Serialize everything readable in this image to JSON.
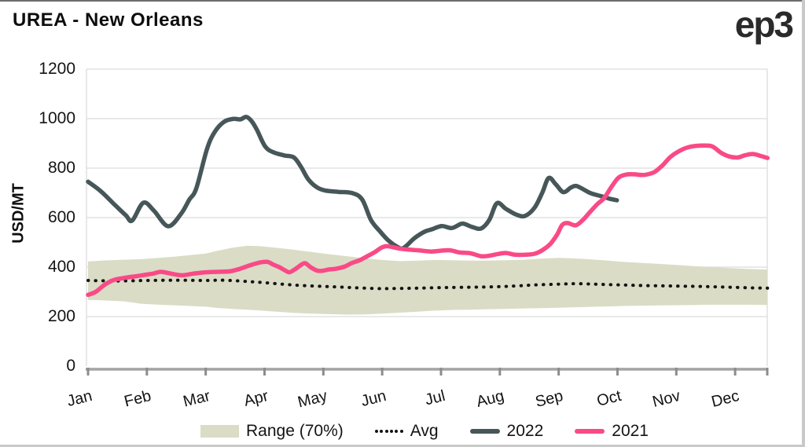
{
  "header": {
    "title": "UREA - New Orleans",
    "logo": "ep3"
  },
  "y_axis": {
    "label": "USD/MT",
    "ticks": [
      0,
      200,
      400,
      600,
      800,
      1000,
      1200
    ]
  },
  "x_axis": {
    "months": [
      "Jan",
      "Feb",
      "Mar",
      "Apr",
      "May",
      "Jun",
      "Jul",
      "Aug",
      "Sep",
      "Oct",
      "Nov",
      "Dec"
    ]
  },
  "legend": [
    {
      "label": "Range (70%)",
      "type": "band",
      "color": "#dbdcc6"
    },
    {
      "label": "Avg",
      "type": "dotted",
      "color": "#141414"
    },
    {
      "label": "2022",
      "type": "line",
      "color": "#475759"
    },
    {
      "label": "2021",
      "type": "line",
      "color": "#f94a87"
    }
  ],
  "colors": {
    "band": "#dbdcc6",
    "avg": "#141414",
    "y2022": "#475759",
    "y2021": "#f94a87",
    "grid": "#dcdcdc",
    "axis": "#a3a3a3",
    "tick": "#8c8c8c",
    "text": "#141414"
  },
  "chart_data": {
    "type": "line",
    "title": "UREA - New Orleans",
    "ylabel": "USD/MT",
    "ylim": [
      0,
      1200
    ],
    "x_unit": "month position (1.0 = Jan 1 ... 12.55 = mid/late Dec)",
    "x_tick_labels": [
      "Jan",
      "Feb",
      "Mar",
      "Apr",
      "May",
      "Jun",
      "Jul",
      "Aug",
      "Sep",
      "Oct",
      "Nov",
      "Dec"
    ],
    "grid": "horizontal only",
    "legend_position": "bottom center",
    "series": [
      {
        "name": "2022",
        "style": "solid",
        "color": "#475759",
        "points": [
          [
            1.0,
            745
          ],
          [
            1.21,
            708
          ],
          [
            1.44,
            655
          ],
          [
            1.64,
            610
          ],
          [
            1.75,
            588
          ],
          [
            1.94,
            660
          ],
          [
            2.12,
            628
          ],
          [
            2.36,
            565
          ],
          [
            2.58,
            615
          ],
          [
            2.72,
            672
          ],
          [
            2.84,
            718
          ],
          [
            3.02,
            876
          ],
          [
            3.15,
            945
          ],
          [
            3.31,
            987
          ],
          [
            3.47,
            999
          ],
          [
            3.59,
            997
          ],
          [
            3.69,
            1007
          ],
          [
            3.78,
            990
          ],
          [
            3.87,
            955
          ],
          [
            4.01,
            888
          ],
          [
            4.15,
            864
          ],
          [
            4.34,
            851
          ],
          [
            4.5,
            843
          ],
          [
            4.62,
            805
          ],
          [
            4.74,
            756
          ],
          [
            4.88,
            724
          ],
          [
            5.02,
            710
          ],
          [
            5.25,
            704
          ],
          [
            5.49,
            699
          ],
          [
            5.66,
            673
          ],
          [
            5.81,
            590
          ],
          [
            5.96,
            545
          ],
          [
            6.1,
            509
          ],
          [
            6.25,
            483
          ],
          [
            6.36,
            477
          ],
          [
            6.55,
            517
          ],
          [
            6.72,
            543
          ],
          [
            6.85,
            553
          ],
          [
            7.01,
            566
          ],
          [
            7.19,
            558
          ],
          [
            7.36,
            576
          ],
          [
            7.52,
            563
          ],
          [
            7.68,
            556
          ],
          [
            7.82,
            590
          ],
          [
            7.95,
            658
          ],
          [
            8.1,
            636
          ],
          [
            8.28,
            612
          ],
          [
            8.43,
            607
          ],
          [
            8.59,
            640
          ],
          [
            8.72,
            700
          ],
          [
            8.83,
            760
          ],
          [
            8.95,
            735
          ],
          [
            9.08,
            703
          ],
          [
            9.21,
            722
          ],
          [
            9.3,
            728
          ],
          [
            9.43,
            713
          ],
          [
            9.55,
            698
          ],
          [
            9.73,
            686
          ],
          [
            9.87,
            676
          ],
          [
            9.99,
            670
          ]
        ]
      },
      {
        "name": "2021",
        "style": "solid",
        "color": "#f94a87",
        "points": [
          [
            1.0,
            288
          ],
          [
            1.13,
            300
          ],
          [
            1.29,
            330
          ],
          [
            1.44,
            348
          ],
          [
            1.61,
            356
          ],
          [
            1.78,
            362
          ],
          [
            1.95,
            368
          ],
          [
            2.11,
            374
          ],
          [
            2.24,
            381
          ],
          [
            2.42,
            373
          ],
          [
            2.6,
            367
          ],
          [
            2.8,
            374
          ],
          [
            3.0,
            379
          ],
          [
            3.21,
            381
          ],
          [
            3.41,
            383
          ],
          [
            3.58,
            393
          ],
          [
            3.75,
            407
          ],
          [
            3.91,
            418
          ],
          [
            4.05,
            421
          ],
          [
            4.15,
            410
          ],
          [
            4.25,
            400
          ],
          [
            4.34,
            388
          ],
          [
            4.42,
            379
          ],
          [
            4.51,
            390
          ],
          [
            4.61,
            407
          ],
          [
            4.69,
            416
          ],
          [
            4.78,
            400
          ],
          [
            4.89,
            386
          ],
          [
            4.98,
            385
          ],
          [
            5.09,
            390
          ],
          [
            5.21,
            393
          ],
          [
            5.36,
            402
          ],
          [
            5.49,
            417
          ],
          [
            5.62,
            428
          ],
          [
            5.73,
            442
          ],
          [
            5.87,
            460
          ],
          [
            5.99,
            479
          ],
          [
            6.08,
            485
          ],
          [
            6.19,
            480
          ],
          [
            6.32,
            474
          ],
          [
            6.48,
            470
          ],
          [
            6.65,
            467
          ],
          [
            6.83,
            463
          ],
          [
            6.99,
            466
          ],
          [
            7.15,
            468
          ],
          [
            7.32,
            459
          ],
          [
            7.5,
            456
          ],
          [
            7.68,
            444
          ],
          [
            7.82,
            446
          ],
          [
            7.95,
            452
          ],
          [
            8.1,
            457
          ],
          [
            8.26,
            450
          ],
          [
            8.43,
            450
          ],
          [
            8.59,
            454
          ],
          [
            8.72,
            468
          ],
          [
            8.86,
            494
          ],
          [
            8.97,
            530
          ],
          [
            9.06,
            570
          ],
          [
            9.15,
            578
          ],
          [
            9.29,
            569
          ],
          [
            9.41,
            590
          ],
          [
            9.53,
            622
          ],
          [
            9.66,
            655
          ],
          [
            9.77,
            678
          ],
          [
            9.9,
            725
          ],
          [
            10.02,
            762
          ],
          [
            10.15,
            774
          ],
          [
            10.29,
            775
          ],
          [
            10.42,
            772
          ],
          [
            10.53,
            776
          ],
          [
            10.64,
            786
          ],
          [
            10.77,
            812
          ],
          [
            10.9,
            845
          ],
          [
            11.04,
            868
          ],
          [
            11.17,
            882
          ],
          [
            11.3,
            889
          ],
          [
            11.46,
            891
          ],
          [
            11.61,
            888
          ],
          [
            11.76,
            862
          ],
          [
            11.9,
            847
          ],
          [
            12.04,
            843
          ],
          [
            12.17,
            852
          ],
          [
            12.3,
            857
          ],
          [
            12.44,
            849
          ],
          [
            12.55,
            841
          ]
        ]
      },
      {
        "name": "Avg",
        "style": "dotted",
        "color": "#141414",
        "points": [
          [
            1.0,
            346
          ],
          [
            1.5,
            344
          ],
          [
            2.0,
            346
          ],
          [
            2.5,
            347
          ],
          [
            3.0,
            346
          ],
          [
            3.3,
            347
          ],
          [
            3.7,
            342
          ],
          [
            4.0,
            337
          ],
          [
            4.3,
            331
          ],
          [
            4.6,
            326
          ],
          [
            5.0,
            322
          ],
          [
            5.3,
            319
          ],
          [
            5.6,
            316
          ],
          [
            6.0,
            313
          ],
          [
            6.3,
            314
          ],
          [
            6.6,
            315
          ],
          [
            7.0,
            317
          ],
          [
            7.3,
            318
          ],
          [
            7.6,
            319
          ],
          [
            8.0,
            321
          ],
          [
            8.3,
            324
          ],
          [
            8.6,
            328
          ],
          [
            9.0,
            331
          ],
          [
            9.3,
            333
          ],
          [
            9.6,
            331
          ],
          [
            9.9,
            329
          ],
          [
            10.2,
            327
          ],
          [
            10.5,
            325
          ],
          [
            10.8,
            324
          ],
          [
            11.1,
            323
          ],
          [
            11.4,
            322
          ],
          [
            11.7,
            320
          ],
          [
            12.0,
            318
          ],
          [
            12.3,
            316
          ],
          [
            12.55,
            315
          ]
        ]
      },
      {
        "name": "Range (70%)",
        "style": "band",
        "color": "#dbdcc6",
        "points_lo_hi": [
          [
            1.0,
            268,
            423
          ],
          [
            1.3,
            265,
            427
          ],
          [
            1.6,
            262,
            430
          ],
          [
            1.9,
            252,
            432
          ],
          [
            2.2,
            248,
            437
          ],
          [
            2.5,
            245,
            443
          ],
          [
            2.8,
            242,
            450
          ],
          [
            3.0,
            240,
            455
          ],
          [
            3.2,
            235,
            466
          ],
          [
            3.45,
            231,
            478
          ],
          [
            3.7,
            228,
            486
          ],
          [
            3.9,
            225,
            485
          ],
          [
            4.2,
            220,
            478
          ],
          [
            4.5,
            215,
            470
          ],
          [
            4.8,
            212,
            461
          ],
          [
            5.1,
            210,
            452
          ],
          [
            5.4,
            208,
            444
          ],
          [
            5.7,
            209,
            436
          ],
          [
            6.0,
            212,
            429
          ],
          [
            6.3,
            216,
            424
          ],
          [
            6.6,
            220,
            426
          ],
          [
            6.9,
            224,
            429
          ],
          [
            7.2,
            227,
            428
          ],
          [
            7.5,
            228,
            426
          ],
          [
            7.8,
            230,
            426
          ],
          [
            8.1,
            231,
            428
          ],
          [
            8.4,
            233,
            430
          ],
          [
            8.7,
            234,
            434
          ],
          [
            9.0,
            236,
            437
          ],
          [
            9.2,
            237,
            436
          ],
          [
            9.5,
            239,
            432
          ],
          [
            9.8,
            241,
            427
          ],
          [
            10.1,
            243,
            421
          ],
          [
            10.4,
            244,
            417
          ],
          [
            10.7,
            245,
            413
          ],
          [
            11.0,
            246,
            409
          ],
          [
            11.3,
            247,
            404
          ],
          [
            11.6,
            248,
            400
          ],
          [
            11.9,
            248,
            396
          ],
          [
            12.2,
            248,
            393
          ],
          [
            12.55,
            247,
            390
          ]
        ]
      }
    ]
  }
}
